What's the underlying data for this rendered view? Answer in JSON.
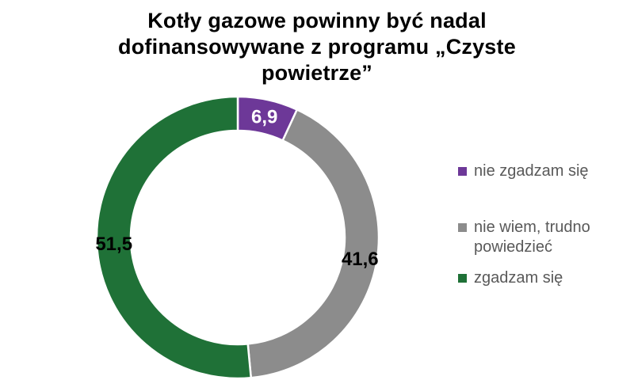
{
  "chart_data": {
    "type": "pie",
    "subtype": "donut",
    "title": "Kotły gazowe powinny być nadal dofinansowywane z programu „Czyste powietrze”",
    "legend_position": "right",
    "start_angle_deg": 0,
    "direction": "clockwise",
    "hole_ratio": 0.76,
    "background_color": "#FFFFFF",
    "separator_color": "#FFFFFF",
    "legend_text_color": "#595959",
    "title_color": "#000000",
    "segments": [
      {
        "label": "nie zgadzam się",
        "value": 6.9,
        "value_display": "6,9",
        "color": "#6D3898",
        "label_color": "#FFFFFF"
      },
      {
        "label": "nie wiem, trudno powiedzieć",
        "value": 41.6,
        "value_display": "41,6",
        "color": "#8C8C8C",
        "label_color": "#000000"
      },
      {
        "label": "zgadzam się",
        "value": 51.5,
        "value_display": "51,5",
        "color": "#1F7137",
        "label_color": "#000000"
      }
    ]
  }
}
